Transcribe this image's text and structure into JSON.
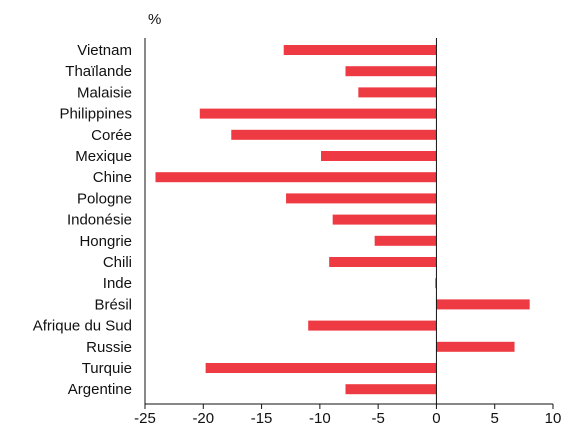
{
  "chart_data": {
    "type": "bar",
    "orientation": "horizontal",
    "title": "",
    "ylabel": "",
    "xlabel": "%",
    "categories": [
      "Vietnam",
      "Thaïlande",
      "Malaisie",
      "Philippines",
      "Corée",
      "Mexique",
      "Chine",
      "Pologne",
      "Indonésie",
      "Hongrie",
      "Chili",
      "Inde",
      "Brésil",
      "Afrique du Sud",
      "Russie",
      "Turquie",
      "Argentine"
    ],
    "values": [
      -13.1,
      -7.8,
      -6.7,
      -20.3,
      -17.6,
      -9.9,
      -24.1,
      -12.9,
      -8.9,
      -5.3,
      -9.2,
      -0.1,
      8.0,
      -11.0,
      6.7,
      -19.8,
      -7.8
    ],
    "xlim": [
      -25,
      10
    ],
    "ticks": [
      "-25",
      "-20",
      "-15",
      "-10",
      "-5",
      "0",
      "5",
      "10"
    ],
    "grid": false,
    "bar_color": "#ee3a43"
  }
}
